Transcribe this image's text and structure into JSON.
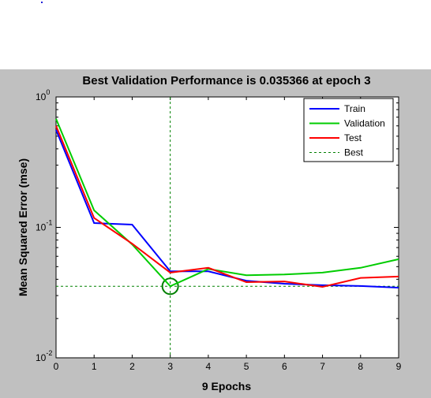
{
  "chart_data": {
    "type": "line",
    "title": "Best Validation Performance is 0.035366 at epoch 3",
    "xlabel": "9 Epochs",
    "ylabel": "Mean Squared Error  (mse)",
    "yscale": "log",
    "xlim": [
      0,
      9
    ],
    "ylim": [
      0.01,
      1
    ],
    "x_ticks": [
      "0",
      "1",
      "2",
      "3",
      "4",
      "5",
      "6",
      "7",
      "8",
      "9"
    ],
    "y_ticks": [
      {
        "base": "10",
        "exp": "0",
        "value": 1
      },
      {
        "base": "10",
        "exp": "-1",
        "value": 0.1
      },
      {
        "base": "10",
        "exp": "-2",
        "value": 0.01
      }
    ],
    "x": [
      0,
      1,
      2,
      3,
      4,
      5,
      6,
      7,
      8,
      9
    ],
    "series": [
      {
        "name": "Train",
        "color": "#0000ff",
        "values": [
          0.56,
          0.108,
          0.105,
          0.046,
          0.046,
          0.039,
          0.037,
          0.036,
          0.0355,
          0.0345
        ]
      },
      {
        "name": "Validation",
        "color": "#00cc00",
        "values": [
          0.68,
          0.135,
          0.074,
          0.035366,
          0.048,
          0.043,
          0.0435,
          0.045,
          0.049,
          0.057
        ]
      },
      {
        "name": "Test",
        "color": "#ff0000",
        "values": [
          0.6,
          0.118,
          0.075,
          0.045,
          0.049,
          0.038,
          0.0385,
          0.035,
          0.041,
          0.042
        ]
      }
    ],
    "best": {
      "name": "Best",
      "color": "#008000",
      "epoch": 3,
      "value": 0.035366
    },
    "legend_position": "top-right",
    "grid": false
  }
}
